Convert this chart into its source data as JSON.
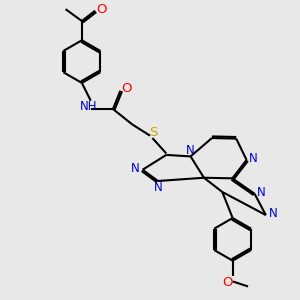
{
  "background_color": "#e8e8e8",
  "bond_color": "#000000",
  "bond_width": 1.5,
  "atoms": {
    "N_blue": "#0000cc",
    "O_red": "#ff0000",
    "S_yellow": "#ccaa00",
    "C_black": "#000000"
  },
  "fig_width": 3.0,
  "fig_height": 3.0,
  "dpi": 100,
  "xlim": [
    0,
    10
  ],
  "ylim": [
    0,
    10
  ]
}
